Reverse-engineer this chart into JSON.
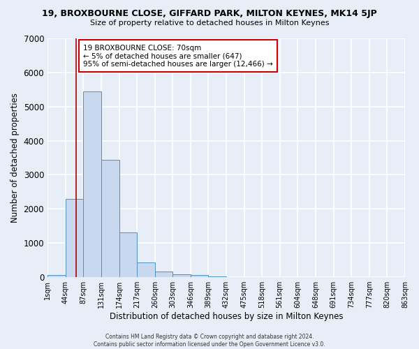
{
  "title1": "19, BROXBOURNE CLOSE, GIFFARD PARK, MILTON KEYNES, MK14 5JP",
  "title2": "Size of property relative to detached houses in Milton Keynes",
  "xlabel": "Distribution of detached houses by size in Milton Keynes",
  "ylabel": "Number of detached properties",
  "footer1": "Contains HM Land Registry data © Crown copyright and database right 2024.",
  "footer2": "Contains public sector information licensed under the Open Government Licence v3.0.",
  "annotation_line1": "19 BROXBOURNE CLOSE: 70sqm",
  "annotation_line2": "← 5% of detached houses are smaller (647)",
  "annotation_line3": "95% of semi-detached houses are larger (12,466) →",
  "bar_values": [
    70,
    2300,
    5450,
    3430,
    1310,
    440,
    160,
    90,
    55,
    30,
    0,
    0,
    0,
    0,
    0,
    0,
    0,
    0,
    0,
    0
  ],
  "bin_edges": [
    1,
    44,
    87,
    131,
    174,
    217,
    260,
    303,
    346,
    389,
    432,
    475,
    518,
    561,
    604,
    648,
    691,
    734,
    777,
    820,
    863
  ],
  "tick_labels": [
    "1sqm",
    "44sqm",
    "87sqm",
    "131sqm",
    "174sqm",
    "217sqm",
    "260sqm",
    "303sqm",
    "346sqm",
    "389sqm",
    "432sqm",
    "475sqm",
    "518sqm",
    "561sqm",
    "604sqm",
    "648sqm",
    "691sqm",
    "734sqm",
    "777sqm",
    "820sqm",
    "863sqm"
  ],
  "bar_color": "#c8d8ee",
  "bar_edge_color": "#5090c0",
  "vline_x": 70,
  "vline_color": "#aa0000",
  "annotation_box_color": "#ffffff",
  "annotation_box_edge": "#cc0000",
  "ylim": [
    0,
    7000
  ],
  "xlim_left": 1,
  "xlim_right": 863,
  "background_color": "#e8eef8",
  "grid_color": "#ffffff",
  "ax_background": "#dde6f5"
}
